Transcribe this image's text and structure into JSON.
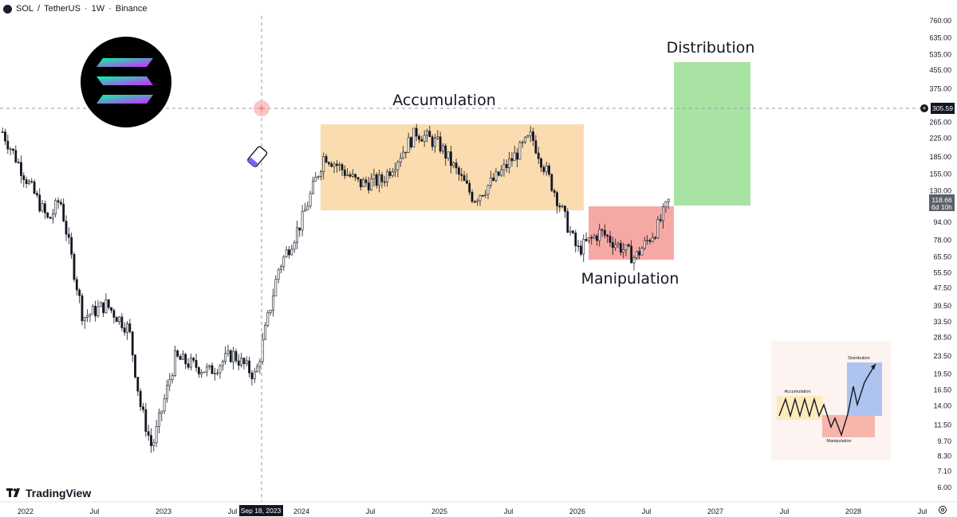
{
  "header": {
    "symbol": "SOL",
    "separator": "/",
    "quote": "TetherUS",
    "interval": "1W",
    "exchange": "Binance",
    "sep_dot": "·"
  },
  "brand": {
    "name": "TradingView"
  },
  "crosshair": {
    "price_label": "305.59",
    "date_label": "Sep 18, 2023"
  },
  "last_price": {
    "price": "118.66",
    "countdown": "6d 10h"
  },
  "colors": {
    "accumulation": "#fbdcb0",
    "manipulation": "#f6a9a4",
    "distribution": "#a8e3a4",
    "candle": "#131722",
    "crosshair": "#9598a1"
  },
  "chart_data": {
    "type": "candlestick",
    "title": "SOL / TetherUS · 1W · Binance",
    "y_scale": "log",
    "y_ticks": [
      "760.00",
      "635.00",
      "535.00",
      "455.00",
      "375.00",
      "305.59",
      "265.00",
      "225.00",
      "185.00",
      "155.00",
      "130.00",
      "94.00",
      "78.00",
      "65.50",
      "55.50",
      "47.50",
      "39.50",
      "33.50",
      "28.50",
      "23.50",
      "19.50",
      "16.50",
      "14.00",
      "11.50",
      "9.70",
      "8.30",
      "7.10",
      "6.00"
    ],
    "x_ticks": [
      "2022",
      "Jul",
      "2023",
      "Jul",
      "Sep 18, 2023",
      "2024",
      "Jul",
      "2025",
      "Jul",
      "2026",
      "Jul",
      "2027",
      "Jul",
      "2028",
      "Jul"
    ],
    "zones": [
      {
        "name": "Accumulation",
        "start": "2024-03",
        "end": "2026-01",
        "price_low": 105,
        "price_high": 260
      },
      {
        "name": "Manipulation",
        "start": "2026-01",
        "end": "2026-09",
        "price_low": 63,
        "price_high": 103
      },
      {
        "name": "Distribution",
        "start": "2026-09",
        "end": "2027-03",
        "price_low": 108,
        "price_high": 500
      }
    ],
    "approx_close_path": [
      {
        "date": "2021-11",
        "close": 240
      },
      {
        "date": "2022-01",
        "close": 150
      },
      {
        "date": "2022-03",
        "close": 95
      },
      {
        "date": "2022-04",
        "close": 120
      },
      {
        "date": "2022-06",
        "close": 35
      },
      {
        "date": "2022-08",
        "close": 40
      },
      {
        "date": "2022-10",
        "close": 31
      },
      {
        "date": "2022-11",
        "close": 14
      },
      {
        "date": "2022-12",
        "close": 9
      },
      {
        "date": "2023-02",
        "close": 23
      },
      {
        "date": "2023-05",
        "close": 20
      },
      {
        "date": "2023-07",
        "close": 24
      },
      {
        "date": "2023-09",
        "close": 19
      },
      {
        "date": "2023-11",
        "close": 58
      },
      {
        "date": "2024-01",
        "close": 95
      },
      {
        "date": "2024-03",
        "close": 190
      },
      {
        "date": "2024-06",
        "close": 140
      },
      {
        "date": "2024-08",
        "close": 145
      },
      {
        "date": "2024-11",
        "close": 240
      },
      {
        "date": "2025-01",
        "close": 210
      },
      {
        "date": "2025-04",
        "close": 120
      },
      {
        "date": "2025-06",
        "close": 150
      },
      {
        "date": "2025-09",
        "close": 230
      },
      {
        "date": "2025-11",
        "close": 130
      },
      {
        "date": "2026-01",
        "close": 70
      },
      {
        "date": "2026-03",
        "close": 85
      },
      {
        "date": "2026-06",
        "close": 65
      },
      {
        "date": "2026-08",
        "close": 90
      },
      {
        "date": "2026-09",
        "close": 118.66
      }
    ]
  },
  "inset": {
    "accumulation_label": "Accumulation",
    "manipulation_label": "Manipulation",
    "distribution_label": "Distribution"
  }
}
